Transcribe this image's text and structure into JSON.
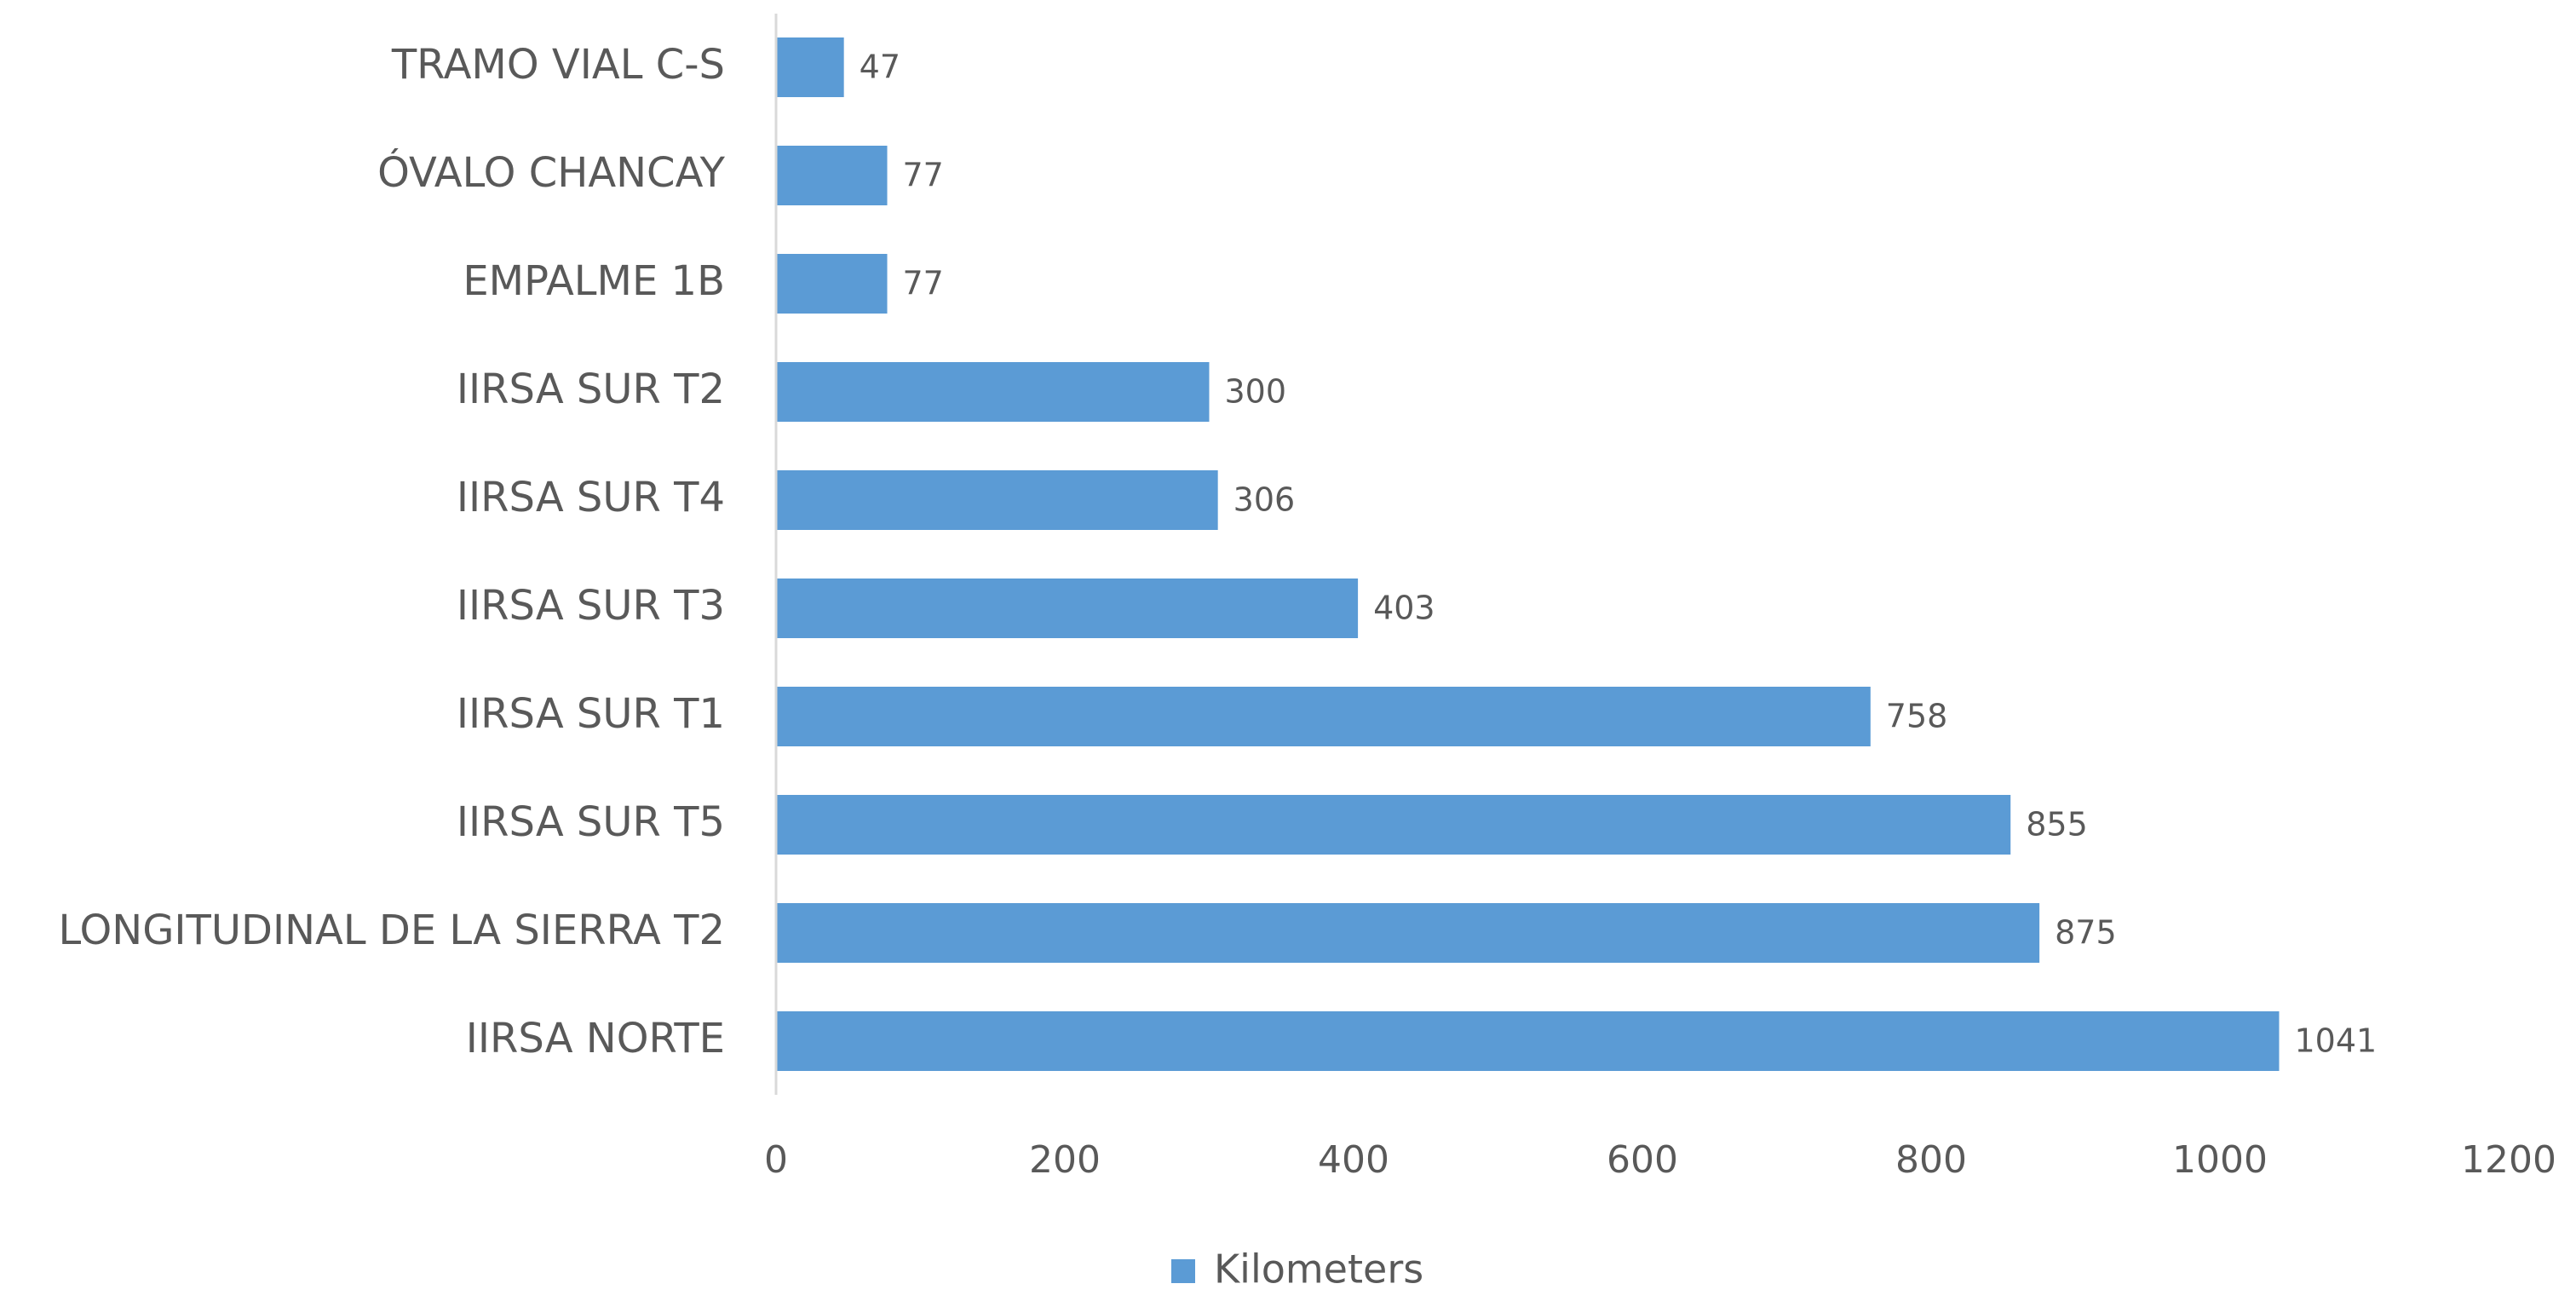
{
  "chart_data": {
    "type": "bar",
    "orientation": "horizontal",
    "categories": [
      "TRAMO VIAL C-S",
      "ÓVALO CHANCAY",
      "EMPALME 1B",
      "IIRSA SUR T2",
      "IIRSA SUR T4",
      "IIRSA SUR T3",
      "IIRSA SUR T1",
      "IIRSA SUR T5",
      "LONGITUDINAL DE LA SIERRA T2",
      "IIRSA NORTE"
    ],
    "series": [
      {
        "name": "Kilometers",
        "color": "#5b9bd5",
        "values": [
          47,
          77,
          77,
          300,
          306,
          403,
          758,
          855,
          875,
          1041
        ]
      }
    ],
    "xlim": [
      0,
      1200
    ],
    "xticks": [
      0,
      200,
      400,
      600,
      800,
      1000,
      1200
    ],
    "grid": false,
    "legend": "bottom"
  }
}
